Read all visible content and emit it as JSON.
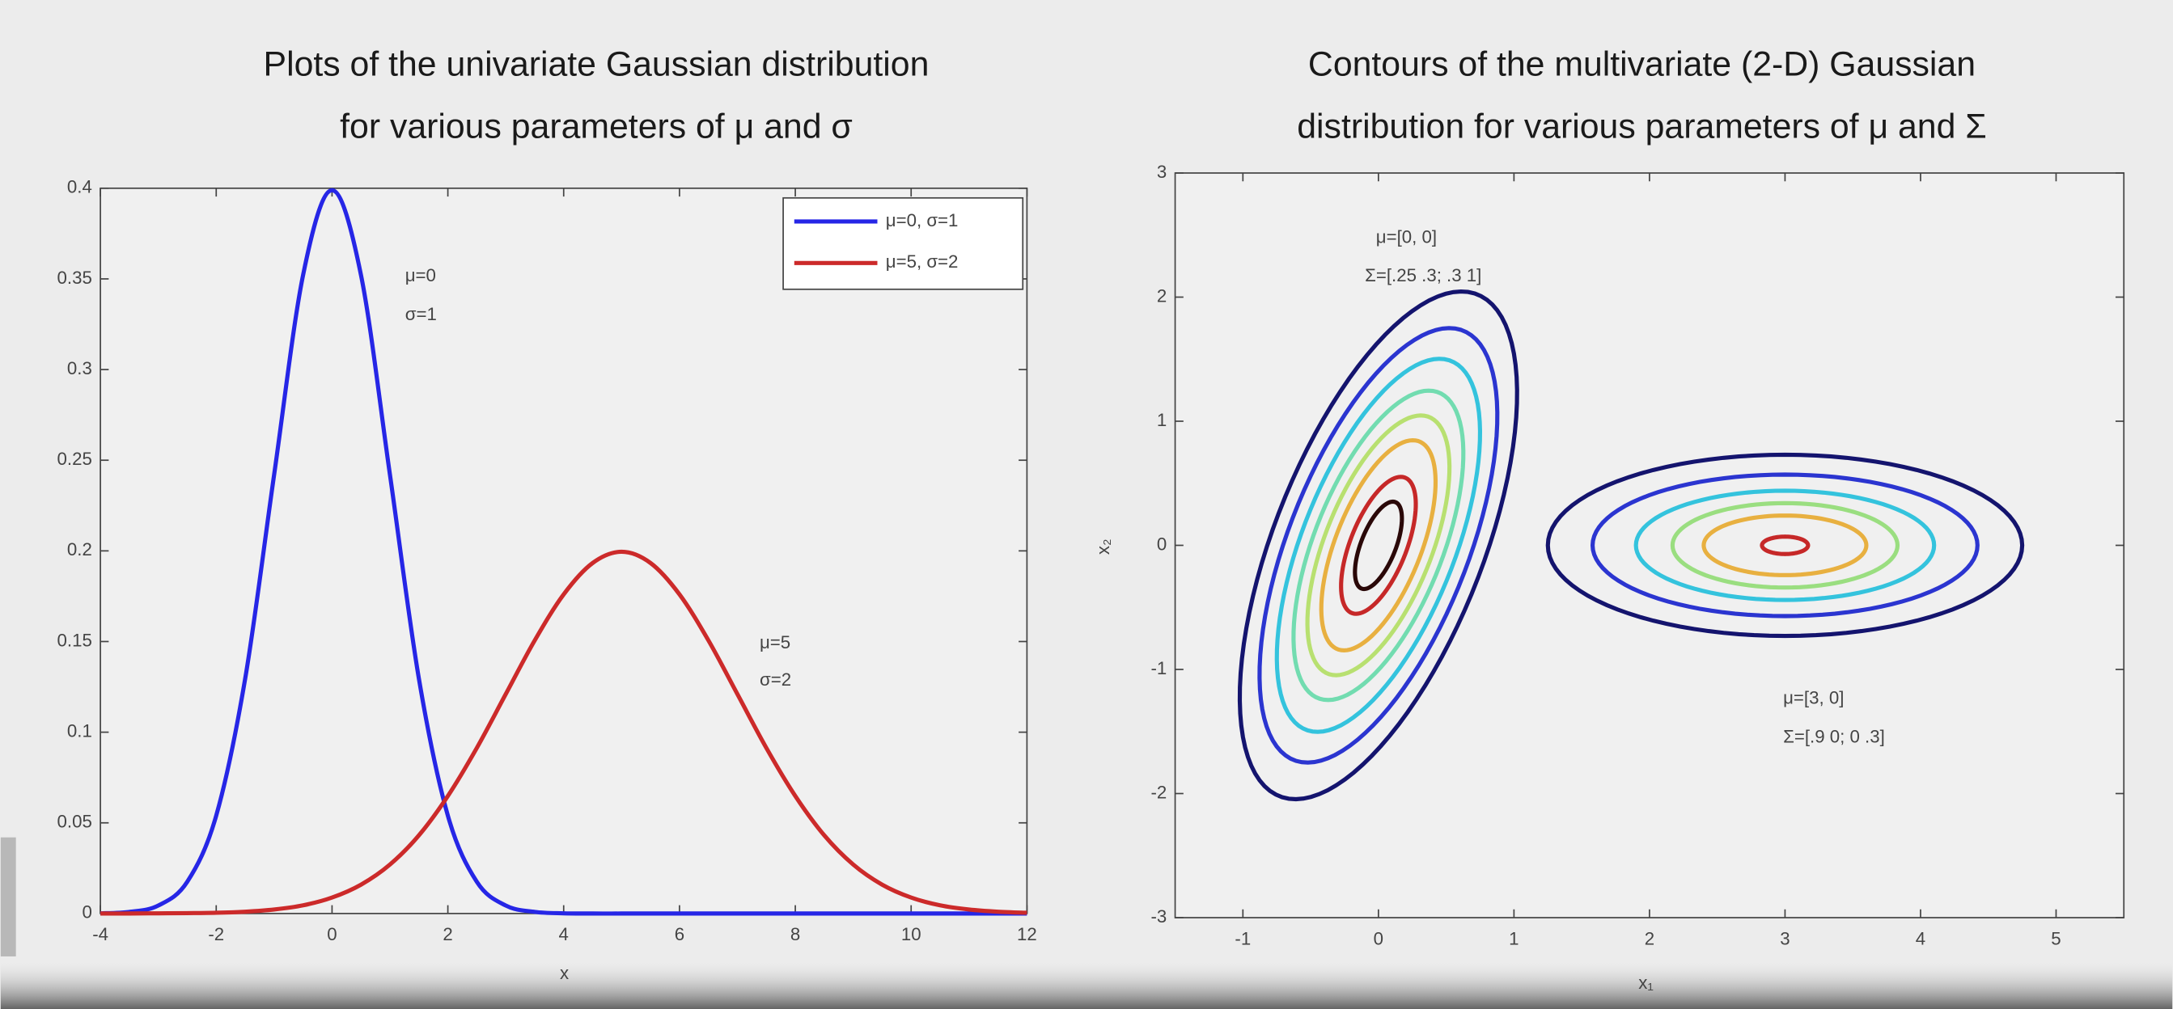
{
  "chart_data": [
    {
      "type": "line",
      "title": [
        "Plots of the univariate Gaussian distribution",
        "for various parameters of μ and σ"
      ],
      "xlabel": "x",
      "x": [
        -4,
        -3.5,
        -3,
        -2.5,
        -2,
        -1.5,
        -1,
        -0.5,
        0,
        0.5,
        1,
        1.5,
        2,
        2.5,
        3,
        3.5,
        4,
        4.5,
        5,
        5.5,
        6,
        6.5,
        7,
        7.5,
        8,
        8.5,
        9,
        9.5,
        10,
        10.5,
        11,
        11.5,
        12
      ],
      "series": [
        {
          "name": "μ=0, σ=1",
          "color": "#2626e6",
          "values": [
            0.0001,
            0.0009,
            0.0044,
            0.0175,
            0.054,
            0.1295,
            0.242,
            0.3521,
            0.3989,
            0.3521,
            0.242,
            0.1295,
            0.054,
            0.0175,
            0.0044,
            0.0009,
            0.0001,
            0,
            0,
            0,
            0,
            0,
            0,
            0,
            0,
            0,
            0,
            0,
            0,
            0,
            0,
            0,
            0
          ]
        },
        {
          "name": "μ=5, σ=2",
          "color": "#cc2a2a",
          "values": [
            0,
            0,
            0.0001,
            0.0002,
            0.0004,
            0.001,
            0.0022,
            0.0045,
            0.0088,
            0.0159,
            0.027,
            0.0431,
            0.0648,
            0.0913,
            0.121,
            0.1506,
            0.176,
            0.1933,
            0.1995,
            0.1933,
            0.176,
            0.1506,
            0.121,
            0.0913,
            0.0648,
            0.0431,
            0.027,
            0.0159,
            0.0088,
            0.0045,
            0.0022,
            0.001,
            0.0004
          ]
        }
      ],
      "xlim": [
        -4,
        12
      ],
      "ylim": [
        0,
        0.4
      ],
      "xticks": [
        -4,
        -2,
        0,
        2,
        4,
        6,
        8,
        10,
        12
      ],
      "yticks": [
        0,
        0.05,
        0.1,
        0.15,
        0.2,
        0.25,
        0.3,
        0.35,
        0.4
      ],
      "annotations": [
        "μ=0",
        "σ=1",
        "μ=5",
        "σ=2"
      ],
      "legend": "northeast"
    },
    {
      "type": "contour",
      "title": [
        "Contours of the multivariate (2-D) Gaussian",
        "distribution for various parameters of μ and Σ"
      ],
      "xlabel": "x₁",
      "ylabel": "x₂",
      "xlim": [
        -1.5,
        5.5
      ],
      "ylim": [
        -3,
        3
      ],
      "xticks": [
        -1,
        0,
        1,
        2,
        3,
        4,
        5
      ],
      "yticks": [
        -3,
        -2,
        -1,
        0,
        1,
        2,
        3
      ],
      "groups": [
        {
          "center": [
            0,
            0
          ],
          "angle": 70.7,
          "rings": [
            {
              "rx": 2.15,
              "ry": 0.78,
              "color": "#14146e"
            },
            {
              "rx": 1.84,
              "ry": 0.67,
              "color": "#2b35d0"
            },
            {
              "rx": 1.58,
              "ry": 0.57,
              "color": "#34c3dd"
            },
            {
              "rx": 1.31,
              "ry": 0.48,
              "color": "#72dcb0"
            },
            {
              "rx": 1.1,
              "ry": 0.4,
              "color": "#b8e070"
            },
            {
              "rx": 0.89,
              "ry": 0.32,
              "color": "#e8b040"
            },
            {
              "rx": 0.58,
              "ry": 0.21,
              "color": "#c62828"
            },
            {
              "rx": 0.37,
              "ry": 0.13,
              "color": "#2a0808"
            }
          ]
        },
        {
          "center": [
            3,
            0
          ],
          "angle": 0,
          "rings": [
            {
              "rx": 1.75,
              "ry": 0.73,
              "color": "#14146e"
            },
            {
              "rx": 1.42,
              "ry": 0.57,
              "color": "#2b35d0"
            },
            {
              "rx": 1.1,
              "ry": 0.44,
              "color": "#34c3dd"
            },
            {
              "rx": 0.83,
              "ry": 0.34,
              "color": "#9ade80"
            },
            {
              "rx": 0.6,
              "ry": 0.24,
              "color": "#e8b040"
            },
            {
              "rx": 0.17,
              "ry": 0.07,
              "color": "#c62828"
            }
          ]
        }
      ],
      "annotations": [
        "μ=[0, 0]",
        "Σ=[.25 .3; .3 1]",
        "μ=[3, 0]",
        "Σ=[.9 0; 0 .3]"
      ]
    }
  ]
}
